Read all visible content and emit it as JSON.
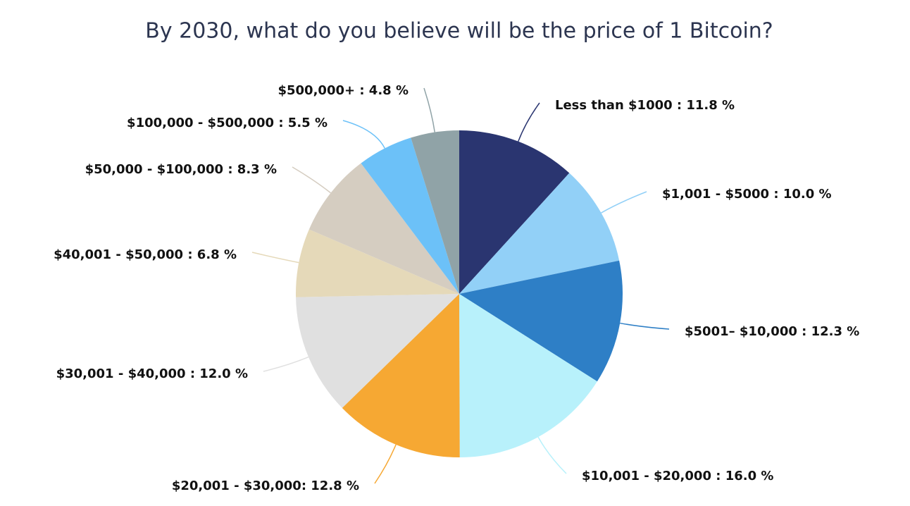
{
  "chart_data": {
    "type": "pie",
    "title": "By 2030, what do you believe will be the price of 1 Bitcoin?",
    "categories": [
      "Less than $1000 : 11.8 %",
      "$1,001 - $5000 : 10.0 %",
      "$5001– $10,000 : 12.3 %",
      "$10,001 - $20,000 : 16.0 %",
      "$20,001 - $30,000: 12.8 %",
      "$30,001 - $40,000 : 12.0 %",
      "$40,001 - $50,000 : 6.8 %",
      "$50,000 - $100,000 : 8.3 %",
      "$100,000 - $500,000 : 5.5 %",
      "$500,000+ : 4.8 %"
    ],
    "values": [
      11.8,
      10.0,
      12.3,
      16.0,
      12.8,
      12.0,
      6.8,
      8.3,
      5.5,
      4.8
    ],
    "colors": [
      "#2a3570",
      "#92d0f7",
      "#2e7fc6",
      "#b8f1fb",
      "#f6a833",
      "#e0e0e0",
      "#e5d9b9",
      "#d5cdc1",
      "#6cc1f8",
      "#90a3a7"
    ]
  }
}
